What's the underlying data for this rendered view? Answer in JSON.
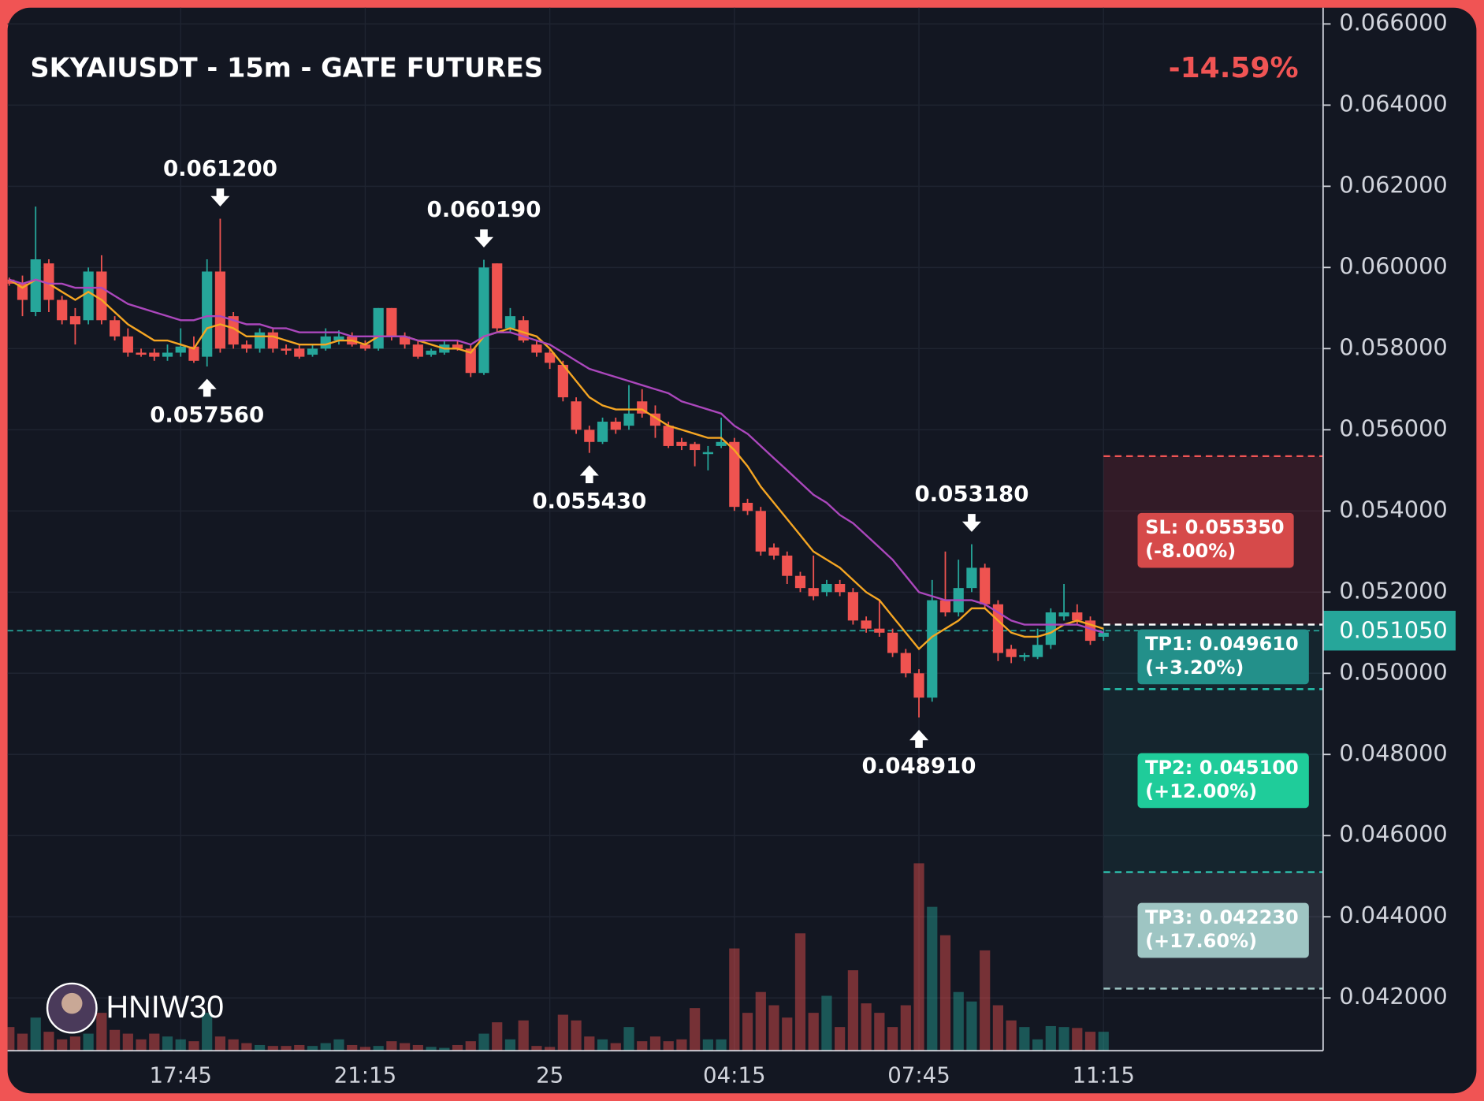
{
  "chart_data": {
    "type": "candlestick",
    "title": "SKYAIUSDT - 15m - GATE FUTURES",
    "change": "-14.59%",
    "watermark": "HNIW30",
    "up_color": "#26a69a",
    "down_color": "#ef5350",
    "grid": true,
    "categories": [
      null,
      null,
      null,
      null,
      null,
      null,
      null,
      null,
      null,
      null,
      null,
      null,
      null,
      "17:45",
      null,
      null,
      null,
      null,
      null,
      null,
      null,
      null,
      null,
      null,
      null,
      null,
      null,
      "21:15",
      null,
      null,
      null,
      null,
      null,
      null,
      null,
      null,
      null,
      null,
      null,
      null,
      null,
      "25",
      null,
      null,
      null,
      null,
      null,
      null,
      null,
      null,
      null,
      null,
      null,
      null,
      null,
      "04:15",
      null,
      null,
      null,
      null,
      null,
      null,
      null,
      null,
      null,
      null,
      null,
      null,
      null,
      "07:45",
      null,
      null,
      null,
      null,
      null,
      null,
      null,
      null,
      null,
      null,
      null,
      null,
      null,
      "11:15"
    ],
    "open": [
      0.0597,
      0.0596,
      0.0589,
      0.0601,
      0.0592,
      0.0588,
      0.0587,
      0.0599,
      0.0587,
      0.0583,
      0.0579,
      0.0579,
      0.0578,
      0.0579,
      0.05805,
      0.0578,
      0.0599,
      0.0588,
      0.0581,
      0.058,
      0.0584,
      0.058,
      0.058,
      0.05785,
      0.058,
      0.0582,
      0.0583,
      0.0581,
      0.058,
      0.059,
      0.0583,
      0.0581,
      0.05785,
      0.0579,
      0.0581,
      0.058,
      0.0574,
      0.0601,
      0.0585,
      0.0587,
      0.0581,
      0.0579,
      0.0576,
      0.0567,
      0.056,
      0.0557,
      0.0562,
      0.0561,
      0.0567,
      0.0564,
      0.0561,
      0.0557,
      0.05565,
      0.0554,
      0.0556,
      0.0557,
      0.0542,
      0.054,
      0.0531,
      0.0529,
      0.0524,
      0.0521,
      0.052,
      0.0522,
      0.052,
      0.0513,
      0.0511,
      0.051,
      0.0505,
      0.05,
      0.0494,
      0.0518,
      0.0515,
      0.0521,
      0.0526,
      0.0517,
      0.0506,
      0.0504,
      0.0504,
      0.0507,
      0.0514,
      0.0515,
      0.0513,
      0.0509
    ],
    "high": [
      0.05975,
      0.0598,
      0.0615,
      0.0602,
      0.0593,
      0.059,
      0.06,
      0.0603,
      0.0588,
      0.0585,
      0.058,
      0.058,
      0.0581,
      0.0585,
      0.0583,
      0.0602,
      0.0612,
      0.0589,
      0.0582,
      0.0585,
      0.0585,
      0.0581,
      0.0581,
      0.0581,
      0.0585,
      0.05845,
      0.0584,
      0.0582,
      0.059,
      0.059,
      0.0584,
      0.0582,
      0.058,
      0.0582,
      0.0582,
      0.0581,
      0.06019,
      0.0601,
      0.059,
      0.0588,
      0.0582,
      0.058,
      0.0577,
      0.0568,
      0.0561,
      0.0563,
      0.0563,
      0.0571,
      0.057,
      0.0566,
      0.0562,
      0.0558,
      0.0557,
      0.0556,
      0.0563,
      0.0558,
      0.0543,
      0.0541,
      0.0532,
      0.053,
      0.0525,
      0.0529,
      0.0523,
      0.0523,
      0.0521,
      0.0514,
      0.0518,
      0.0511,
      0.0506,
      0.0501,
      0.0523,
      0.053,
      0.0528,
      0.05318,
      0.0527,
      0.0518,
      0.0507,
      0.0505,
      0.0511,
      0.0516,
      0.0522,
      0.0517,
      0.0514,
      0.0511
    ],
    "low": [
      0.05955,
      0.0588,
      0.0588,
      0.0589,
      0.0586,
      0.0581,
      0.0586,
      0.0586,
      0.0582,
      0.0578,
      0.0578,
      0.0577,
      0.0577,
      0.0578,
      0.05765,
      0.05756,
      0.0579,
      0.058,
      0.0579,
      0.0579,
      0.0579,
      0.05785,
      0.05775,
      0.0578,
      0.05795,
      0.0581,
      0.05805,
      0.05795,
      0.05795,
      0.0582,
      0.058,
      0.05775,
      0.0578,
      0.05785,
      0.05795,
      0.0573,
      0.05735,
      0.0584,
      0.0584,
      0.05815,
      0.0578,
      0.0575,
      0.0567,
      0.0559,
      0.05543,
      0.05565,
      0.0559,
      0.056,
      0.0563,
      0.0558,
      0.05555,
      0.0555,
      0.0551,
      0.055,
      0.05555,
      0.054,
      0.0539,
      0.0529,
      0.0528,
      0.0522,
      0.052,
      0.0518,
      0.0519,
      0.0519,
      0.0512,
      0.051,
      0.0509,
      0.0504,
      0.0499,
      0.04891,
      0.0493,
      0.0514,
      0.0514,
      0.052,
      0.0516,
      0.0503,
      0.05025,
      0.0503,
      0.05035,
      0.0506,
      0.0513,
      0.0512,
      0.0507,
      0.0508
    ],
    "close": [
      0.0596,
      0.0592,
      0.0602,
      0.0592,
      0.0587,
      0.0586,
      0.0599,
      0.0587,
      0.0583,
      0.0579,
      0.05785,
      0.0578,
      0.0579,
      0.05805,
      0.0577,
      0.0599,
      0.058,
      0.0581,
      0.058,
      0.0584,
      0.058,
      0.05795,
      0.0578,
      0.058,
      0.0583,
      0.0583,
      0.0581,
      0.058,
      0.059,
      0.0583,
      0.0581,
      0.0578,
      0.05795,
      0.0581,
      0.058,
      0.0574,
      0.06,
      0.0585,
      0.0588,
      0.0582,
      0.0579,
      0.05765,
      0.0568,
      0.056,
      0.0557,
      0.0562,
      0.056,
      0.0564,
      0.0564,
      0.0561,
      0.0556,
      0.0556,
      0.0555,
      0.05545,
      0.0557,
      0.0541,
      0.054,
      0.053,
      0.0529,
      0.0524,
      0.0521,
      0.0519,
      0.0522,
      0.052,
      0.0513,
      0.0511,
      0.051,
      0.0505,
      0.05,
      0.0494,
      0.0518,
      0.0515,
      0.0521,
      0.0526,
      0.0517,
      0.0505,
      0.0504,
      0.05045,
      0.0507,
      0.0515,
      0.0515,
      0.0513,
      0.0508,
      0.051
    ],
    "volume": [
      25,
      18,
      35,
      20,
      12,
      15,
      18,
      40,
      22,
      18,
      12,
      18,
      15,
      12,
      10,
      40,
      15,
      12,
      8,
      6,
      5,
      5,
      6,
      5,
      8,
      12,
      6,
      4,
      5,
      10,
      8,
      6,
      4,
      3,
      6,
      10,
      18,
      30,
      12,
      32,
      5,
      4,
      38,
      32,
      15,
      12,
      8,
      25,
      10,
      15,
      10,
      12,
      45,
      12,
      12,
      108,
      40,
      62,
      48,
      35,
      124,
      40,
      58,
      25,
      85,
      50,
      40,
      25,
      48,
      198,
      152,
      122,
      62,
      52,
      106,
      48,
      32,
      25,
      12,
      26,
      25,
      24,
      20,
      20
    ],
    "lines": [
      {
        "color": "#f5a623",
        "values": [
          0.0597,
          0.0595,
          0.0597,
          0.0596,
          0.0594,
          0.0592,
          0.0594,
          0.0592,
          0.0589,
          0.0586,
          0.0584,
          0.0582,
          0.0582,
          0.0581,
          0.058,
          0.0585,
          0.0586,
          0.0585,
          0.0583,
          0.0583,
          0.0583,
          0.0582,
          0.0581,
          0.0581,
          0.0581,
          0.0582,
          0.0582,
          0.0581,
          0.0583,
          0.0583,
          0.0583,
          0.0582,
          0.0581,
          0.058,
          0.058,
          0.0579,
          0.0583,
          0.0584,
          0.0585,
          0.0584,
          0.0583,
          0.058,
          0.0576,
          0.0572,
          0.0568,
          0.0566,
          0.0565,
          0.0565,
          0.0565,
          0.0563,
          0.0561,
          0.056,
          0.0559,
          0.0558,
          0.0558,
          0.0555,
          0.0551,
          0.0546,
          0.0542,
          0.0538,
          0.0534,
          0.053,
          0.0528,
          0.0526,
          0.0523,
          0.052,
          0.0518,
          0.0514,
          0.051,
          0.0506,
          0.0509,
          0.0511,
          0.0513,
          0.0516,
          0.0516,
          0.0513,
          0.051,
          0.0509,
          0.0509,
          0.051,
          0.0512,
          0.0513,
          0.0512,
          0.0511
        ]
      },
      {
        "color": "#ab47bc",
        "values": [
          0.0597,
          0.0596,
          0.0597,
          0.0596,
          0.0596,
          0.0595,
          0.0595,
          0.0595,
          0.0593,
          0.0591,
          0.059,
          0.0589,
          0.0588,
          0.0587,
          0.0587,
          0.0588,
          0.0588,
          0.0587,
          0.0586,
          0.0586,
          0.0585,
          0.0585,
          0.0584,
          0.0584,
          0.0584,
          0.0584,
          0.0583,
          0.0583,
          0.0583,
          0.0583,
          0.0583,
          0.0582,
          0.0582,
          0.0582,
          0.0582,
          0.0581,
          0.0583,
          0.0584,
          0.0584,
          0.0583,
          0.0582,
          0.0581,
          0.0579,
          0.0577,
          0.0575,
          0.0574,
          0.0573,
          0.0572,
          0.0571,
          0.057,
          0.0569,
          0.0567,
          0.0566,
          0.0565,
          0.0564,
          0.0561,
          0.0559,
          0.0556,
          0.0553,
          0.055,
          0.0547,
          0.0544,
          0.0542,
          0.0539,
          0.0537,
          0.0534,
          0.0531,
          0.0528,
          0.0524,
          0.052,
          0.0519,
          0.0518,
          0.0518,
          0.0518,
          0.0517,
          0.0515,
          0.0513,
          0.0512,
          0.0512,
          0.0512,
          0.0512,
          0.0512,
          0.0511,
          0.051
        ]
      }
    ],
    "annotations": [
      {
        "index": 16,
        "kind": "high",
        "value": 0.0612,
        "label": "0.061200"
      },
      {
        "index": 15,
        "kind": "low",
        "value": 0.05756,
        "label": "0.057560"
      },
      {
        "index": 36,
        "kind": "high",
        "value": 0.06019,
        "label": "0.060190"
      },
      {
        "index": 44,
        "kind": "low",
        "value": 0.05543,
        "label": "0.055430"
      },
      {
        "index": 73,
        "kind": "high",
        "value": 0.05318,
        "label": "0.053180"
      },
      {
        "index": 69,
        "kind": "low",
        "value": 0.04891,
        "label": "0.048910"
      }
    ],
    "entry": 0.0512,
    "levels": [
      {
        "price": 0.05535,
        "label": "SL: 0.055350",
        "change": "(-8.00%)",
        "color": "#d64a4a",
        "line_color": "#f05454",
        "zone": "rgba(242,54,69,0.14)"
      },
      {
        "price": 0.04961,
        "label": "TP1: 0.049610",
        "change": "(+3.20%)",
        "color": "#23908a",
        "line_color": "#26c6b0",
        "zone": "rgba(38,166,154,0.10)"
      },
      {
        "price": 0.0451,
        "label": "TP2: 0.045100",
        "change": "(+12.00%)",
        "color": "#1fcc9a",
        "line_color": "#26c6b0",
        "zone": "rgba(38,166,154,0.10)"
      },
      {
        "price": 0.04223,
        "label": "TP3: 0.042230",
        "change": "(+17.60%)",
        "color": "#9ec5c3",
        "line_color": "#9ec5c3",
        "zone": "rgba(140,150,170,0.16)"
      }
    ],
    "last_price": {
      "value": 0.05105,
      "label": "0.051050"
    },
    "ylim": [
      0.0407,
      0.0664
    ],
    "yticks": [
      {
        "value": 0.066,
        "label": "0.066000"
      },
      {
        "value": 0.064,
        "label": "0.064000"
      },
      {
        "value": 0.062,
        "label": "0.062000"
      },
      {
        "value": 0.06,
        "label": "0.060000"
      },
      {
        "value": 0.058,
        "label": "0.058000"
      },
      {
        "value": 0.056,
        "label": "0.056000"
      },
      {
        "value": 0.054,
        "label": "0.054000"
      },
      {
        "value": 0.052,
        "label": "0.052000"
      },
      {
        "value": 0.05,
        "label": "0.050000"
      },
      {
        "value": 0.048,
        "label": "0.048000"
      },
      {
        "value": 0.046,
        "label": "0.046000"
      },
      {
        "value": 0.044,
        "label": "0.044000"
      },
      {
        "value": 0.042,
        "label": "0.042000"
      }
    ]
  }
}
